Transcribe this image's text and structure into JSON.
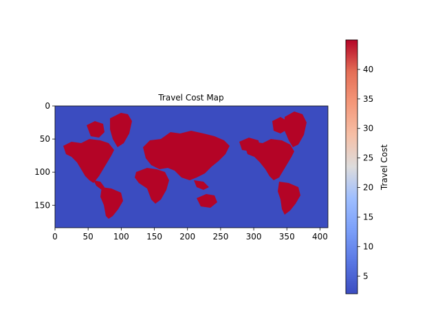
{
  "chart_data": {
    "type": "heatmap",
    "title": "Travel Cost Map",
    "xlabel": "",
    "ylabel": "",
    "xlim": [
      0,
      412
    ],
    "ylim": [
      184,
      0
    ],
    "x_ticks": [
      0,
      50,
      100,
      150,
      200,
      250,
      300,
      350,
      400
    ],
    "y_ticks": [
      0,
      50,
      100,
      150
    ],
    "colormap": "coolwarm",
    "value_range": [
      2,
      45
    ],
    "ocean_value": 2,
    "land_value": 45,
    "ocean_color": "#3b4cc0",
    "land_color": "#b40426",
    "colorbar": {
      "label": "Travel Cost",
      "ticks": [
        5,
        10,
        15,
        20,
        25,
        30,
        35,
        40
      ],
      "location": "right"
    },
    "grid": false
  }
}
